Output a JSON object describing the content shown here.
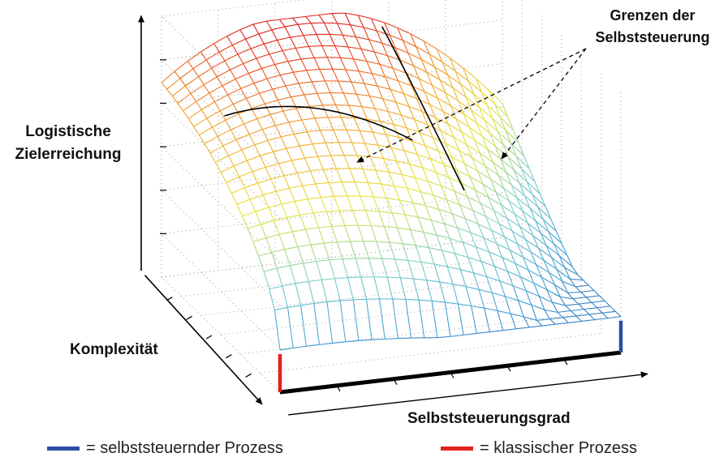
{
  "labels": {
    "y_axis": [
      "Logistische",
      "Zielerreichung"
    ],
    "x_axis": "Selbststeuerungsgrad",
    "z_axis": "Komplexität",
    "annotation": [
      "Grenzen der",
      "Selbststeuerung"
    ]
  },
  "legend": [
    {
      "text": "= selbststeuernder Prozess",
      "color": "#2b4fa3"
    },
    {
      "text": "= klassischer Prozess",
      "color": "#e0201b"
    }
  ],
  "colors": {
    "axis": "#000000",
    "grid": "#9a9a9a",
    "boundary_line": "#000000",
    "colormap": [
      "#2c3a9e",
      "#3f9fd6",
      "#7fd0c8",
      "#e6e63a",
      "#f29b2a",
      "#e0201b"
    ]
  },
  "surface": {
    "function": "logistic goal attainment = f(degree of self-control, complexity)",
    "shape": "saddle-like dome, maximum at low complexity / medium self-control"
  }
}
